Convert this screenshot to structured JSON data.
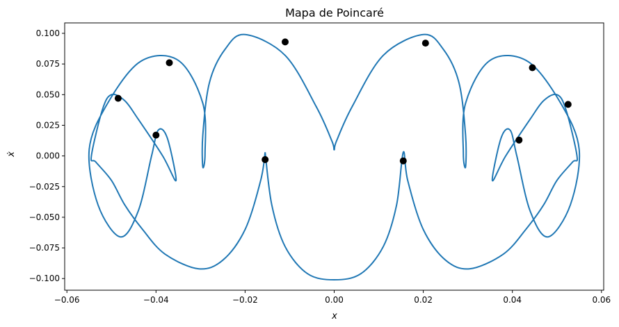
{
  "chart_data": {
    "type": "scatter",
    "title": "Mapa de Poincaré",
    "xlabel": "x",
    "ylabel": "ẋ",
    "xlim": [
      -0.0605,
      0.0605
    ],
    "ylim": [
      -0.1095,
      0.1085
    ],
    "x_ticks": [
      "−0.06",
      "−0.04",
      "−0.02",
      "0.00",
      "0.02",
      "0.04",
      "0.06"
    ],
    "x_tick_values": [
      -0.06,
      -0.04,
      -0.02,
      0.0,
      0.02,
      0.04,
      0.06
    ],
    "y_ticks": [
      "−0.100",
      "−0.075",
      "−0.050",
      "−0.025",
      "0.000",
      "0.025",
      "0.050",
      "0.075",
      "0.100"
    ],
    "y_tick_values": [
      -0.1,
      -0.075,
      -0.05,
      -0.025,
      0.0,
      0.025,
      0.05,
      0.075,
      0.1
    ],
    "grid": false,
    "series": [
      {
        "kind": "trajectory",
        "color": "#1f77b4",
        "x": [
          -0.0155,
          -0.014,
          -0.011,
          -0.006,
          0.0,
          0.006,
          0.011,
          0.014,
          0.0155,
          0.0165,
          0.02,
          0.025,
          0.0305,
          0.038,
          0.043,
          0.047,
          0.05,
          0.0535,
          0.0545,
          0.052,
          0.05,
          0.047,
          0.044,
          0.0385,
          0.0355,
          0.0375,
          0.0395,
          0.041,
          0.044,
          0.048,
          0.053,
          0.055,
          0.051,
          0.0435,
          0.035,
          0.0295,
          0.029,
          0.0295,
          0.0295,
          0.028,
          0.0245,
          0.02,
          0.011,
          0.004,
          0.0005,
          0.0,
          -0.0005,
          -0.004,
          -0.011,
          -0.02,
          -0.0245,
          -0.028,
          -0.0295,
          -0.0295,
          -0.029,
          -0.0295,
          -0.035,
          -0.0435,
          -0.051,
          -0.055,
          -0.053,
          -0.048,
          -0.044,
          -0.041,
          -0.0395,
          -0.0375,
          -0.0355,
          -0.0385,
          -0.044,
          -0.047,
          -0.05,
          -0.052,
          -0.0545,
          -0.0535,
          -0.05,
          -0.047,
          -0.043,
          -0.038,
          -0.0305,
          -0.025,
          -0.02,
          -0.0165,
          -0.0155
        ],
        "y": [
          0.003,
          -0.04,
          -0.074,
          -0.096,
          -0.101,
          -0.096,
          -0.074,
          -0.04,
          0.003,
          -0.02,
          -0.06,
          -0.085,
          -0.092,
          -0.08,
          -0.06,
          -0.04,
          -0.02,
          -0.005,
          0.0,
          0.038,
          0.05,
          0.045,
          0.03,
          0.0,
          -0.02,
          0.015,
          0.021,
          0.0,
          -0.045,
          -0.066,
          -0.04,
          0.005,
          0.042,
          0.077,
          0.078,
          0.043,
          0.002,
          -0.009,
          0.017,
          0.06,
          0.087,
          0.099,
          0.082,
          0.04,
          0.012,
          0.005,
          0.012,
          0.04,
          0.082,
          0.099,
          0.087,
          0.06,
          0.017,
          -0.009,
          0.002,
          0.043,
          0.078,
          0.077,
          0.042,
          0.005,
          -0.04,
          -0.066,
          -0.045,
          0.0,
          0.021,
          0.015,
          -0.02,
          0.0,
          0.03,
          0.045,
          0.05,
          0.038,
          0.0,
          -0.005,
          -0.02,
          -0.04,
          -0.06,
          -0.08,
          -0.092,
          -0.085,
          -0.06,
          -0.02,
          0.003
        ]
      },
      {
        "kind": "poincare-points",
        "color": "#000000",
        "points": [
          {
            "x": -0.0485,
            "y": 0.047
          },
          {
            "x": -0.037,
            "y": 0.076
          },
          {
            "x": -0.04,
            "y": 0.017
          },
          {
            "x": -0.0155,
            "y": -0.003
          },
          {
            "x": -0.011,
            "y": 0.093
          },
          {
            "x": 0.0155,
            "y": -0.004
          },
          {
            "x": 0.0205,
            "y": 0.092
          },
          {
            "x": 0.0415,
            "y": 0.013
          },
          {
            "x": 0.0445,
            "y": 0.072
          },
          {
            "x": 0.0525,
            "y": 0.042
          }
        ]
      }
    ]
  }
}
